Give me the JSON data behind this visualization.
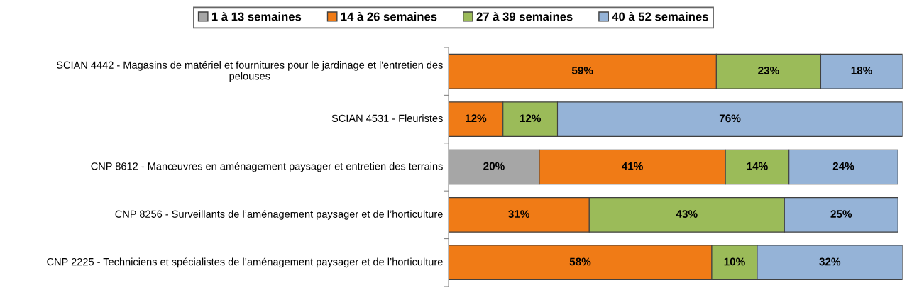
{
  "chart_data": {
    "type": "bar",
    "orientation": "horizontal",
    "stacked": true,
    "legend": "top",
    "grid": false,
    "categories": [
      "SCIAN 4442 - Magasins de matériel et fournitures pour le jardinage et l'entretien des pelouses",
      "SCIAN 4531 - Fleuristes",
      "CNP 8612 - Manœuvres en aménagement paysager et entretien des terrains",
      "CNP 8256 - Surveillants de l’aménagement paysager et de l’horticulture",
      "CNP 2225 - Techniciens et spécialistes de l’aménagement paysager et de l’horticulture"
    ],
    "series": [
      {
        "name": "1 à 13 semaines",
        "color": "#a6a6a6",
        "values": [
          null,
          null,
          20,
          null,
          null
        ],
        "value_labels": [
          null,
          null,
          "20%",
          null,
          null
        ]
      },
      {
        "name": "14 à 26 semaines",
        "color": "#f07b16",
        "values": [
          59,
          12,
          41,
          31,
          58
        ],
        "value_labels": [
          "59%",
          "12%",
          "41%",
          "31%",
          "58%"
        ]
      },
      {
        "name": "27 à 39 semaines",
        "color": "#9bbb59",
        "values": [
          23,
          12,
          14,
          43,
          10
        ],
        "value_labels": [
          "23%",
          "12%",
          "14%",
          "43%",
          "10%"
        ]
      },
      {
        "name": "40 à 52 semaines",
        "color": "#95b3d7",
        "values": [
          18,
          76,
          24,
          25,
          32
        ],
        "value_labels": [
          "18%",
          "76%",
          "24%",
          "25%",
          "32%"
        ]
      }
    ]
  }
}
